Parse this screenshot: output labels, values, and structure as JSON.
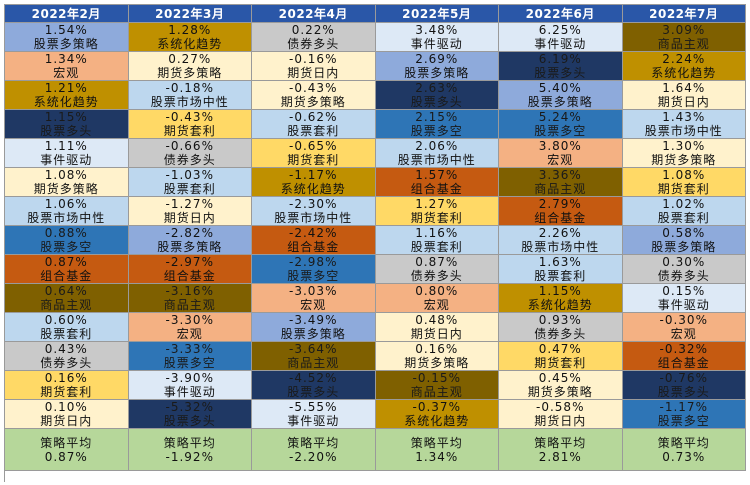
{
  "chart_data": {
    "type": "table",
    "title": "",
    "columns": [
      "2022年2月",
      "2022年3月",
      "2022年4月",
      "2022年5月",
      "2022年6月",
      "2022年7月"
    ],
    "unit": "%",
    "rows": [
      [
        {
          "v": "1.54%",
          "n": "股票多策略",
          "c": "#8eaadb"
        },
        {
          "v": "1.28%",
          "n": "系统化趋势",
          "c": "#bf9000"
        },
        {
          "v": "0.22%",
          "n": "债券多头",
          "c": "#c9c9c9"
        },
        {
          "v": "3.48%",
          "n": "事件驱动",
          "c": "#dde9f6"
        },
        {
          "v": "6.25%",
          "n": "事件驱动",
          "c": "#dde9f6"
        },
        {
          "v": "3.09%",
          "n": "商品主观",
          "c": "#7f6000"
        }
      ],
      [
        {
          "v": "1.34%",
          "n": "宏观",
          "c": "#f4b183"
        },
        {
          "v": "0.27%",
          "n": "期货多策略",
          "c": "#fff2cc"
        },
        {
          "v": "-0.16%",
          "n": "期货日内",
          "c": "#fff2cc"
        },
        {
          "v": "2.69%",
          "n": "股票多策略",
          "c": "#8eaadb"
        },
        {
          "v": "6.19%",
          "n": "股票多头",
          "c": "#1f3864"
        },
        {
          "v": "2.24%",
          "n": "系统化趋势",
          "c": "#bf9000"
        }
      ],
      [
        {
          "v": "1.21%",
          "n": "系统化趋势",
          "c": "#bf9000"
        },
        {
          "v": "-0.18%",
          "n": "股票市场中性",
          "c": "#bdd7ee"
        },
        {
          "v": "-0.43%",
          "n": "期货多策略",
          "c": "#fff2cc"
        },
        {
          "v": "2.63%",
          "n": "股票多头",
          "c": "#1f3864"
        },
        {
          "v": "5.40%",
          "n": "股票多策略",
          "c": "#8eaadb"
        },
        {
          "v": "1.64%",
          "n": "期货日内",
          "c": "#fff2cc"
        }
      ],
      [
        {
          "v": "1.15%",
          "n": "股票多头",
          "c": "#1f3864"
        },
        {
          "v": "-0.43%",
          "n": "期货套利",
          "c": "#ffd966"
        },
        {
          "v": "-0.62%",
          "n": "股票套利",
          "c": "#bdd7ee"
        },
        {
          "v": "2.15%",
          "n": "股票多空",
          "c": "#2e75b6"
        },
        {
          "v": "5.24%",
          "n": "股票多空",
          "c": "#2e75b6"
        },
        {
          "v": "1.43%",
          "n": "股票市场中性",
          "c": "#bdd7ee"
        }
      ],
      [
        {
          "v": "1.11%",
          "n": "事件驱动",
          "c": "#dde9f6"
        },
        {
          "v": "-0.66%",
          "n": "债券多头",
          "c": "#c9c9c9"
        },
        {
          "v": "-0.65%",
          "n": "期货套利",
          "c": "#ffd966"
        },
        {
          "v": "2.06%",
          "n": "股票市场中性",
          "c": "#bdd7ee"
        },
        {
          "v": "3.80%",
          "n": "宏观",
          "c": "#f4b183"
        },
        {
          "v": "1.30%",
          "n": "期货多策略",
          "c": "#fff2cc"
        }
      ],
      [
        {
          "v": "1.08%",
          "n": "期货多策略",
          "c": "#fff2cc"
        },
        {
          "v": "-1.03%",
          "n": "股票套利",
          "c": "#bdd7ee"
        },
        {
          "v": "-1.17%",
          "n": "系统化趋势",
          "c": "#bf9000"
        },
        {
          "v": "1.57%",
          "n": "组合基金",
          "c": "#c55a11"
        },
        {
          "v": "3.36%",
          "n": "商品主观",
          "c": "#7f6000"
        },
        {
          "v": "1.08%",
          "n": "期货套利",
          "c": "#ffd966"
        }
      ],
      [
        {
          "v": "1.06%",
          "n": "股票市场中性",
          "c": "#bdd7ee"
        },
        {
          "v": "-1.27%",
          "n": "期货日内",
          "c": "#fff2cc"
        },
        {
          "v": "-2.30%",
          "n": "股票市场中性",
          "c": "#bdd7ee"
        },
        {
          "v": "1.27%",
          "n": "期货套利",
          "c": "#ffd966"
        },
        {
          "v": "2.79%",
          "n": "组合基金",
          "c": "#c55a11"
        },
        {
          "v": "1.02%",
          "n": "股票套利",
          "c": "#bdd7ee"
        }
      ],
      [
        {
          "v": "0.88%",
          "n": "股票多空",
          "c": "#2e75b6"
        },
        {
          "v": "-2.82%",
          "n": "股票多策略",
          "c": "#8eaadb"
        },
        {
          "v": "-2.42%",
          "n": "组合基金",
          "c": "#c55a11"
        },
        {
          "v": "1.16%",
          "n": "股票套利",
          "c": "#bdd7ee"
        },
        {
          "v": "2.26%",
          "n": "股票市场中性",
          "c": "#bdd7ee"
        },
        {
          "v": "0.58%",
          "n": "股票多策略",
          "c": "#8eaadb"
        }
      ],
      [
        {
          "v": "0.87%",
          "n": "组合基金",
          "c": "#c55a11"
        },
        {
          "v": "-2.97%",
          "n": "组合基金",
          "c": "#c55a11"
        },
        {
          "v": "-2.98%",
          "n": "股票多空",
          "c": "#2e75b6"
        },
        {
          "v": "0.87%",
          "n": "债券多头",
          "c": "#c9c9c9"
        },
        {
          "v": "1.63%",
          "n": "股票套利",
          "c": "#bdd7ee"
        },
        {
          "v": "0.30%",
          "n": "债券多头",
          "c": "#c9c9c9"
        }
      ],
      [
        {
          "v": "0.64%",
          "n": "商品主观",
          "c": "#7f6000"
        },
        {
          "v": "-3.16%",
          "n": "商品主观",
          "c": "#7f6000"
        },
        {
          "v": "-3.03%",
          "n": "宏观",
          "c": "#f4b183"
        },
        {
          "v": "0.80%",
          "n": "宏观",
          "c": "#f4b183"
        },
        {
          "v": "1.15%",
          "n": "系统化趋势",
          "c": "#bf9000"
        },
        {
          "v": "0.15%",
          "n": "事件驱动",
          "c": "#dde9f6"
        }
      ],
      [
        {
          "v": "0.60%",
          "n": "股票套利",
          "c": "#bdd7ee"
        },
        {
          "v": "-3.30%",
          "n": "宏观",
          "c": "#f4b183"
        },
        {
          "v": "-3.49%",
          "n": "股票多策略",
          "c": "#8eaadb"
        },
        {
          "v": "0.48%",
          "n": "期货日内",
          "c": "#fff2cc"
        },
        {
          "v": "0.93%",
          "n": "债券多头",
          "c": "#c9c9c9"
        },
        {
          "v": "-0.30%",
          "n": "宏观",
          "c": "#f4b183"
        }
      ],
      [
        {
          "v": "0.43%",
          "n": "债券多头",
          "c": "#c9c9c9"
        },
        {
          "v": "-3.33%",
          "n": "股票多空",
          "c": "#2e75b6"
        },
        {
          "v": "-3.64%",
          "n": "商品主观",
          "c": "#7f6000"
        },
        {
          "v": "0.16%",
          "n": "期货多策略",
          "c": "#fff2cc"
        },
        {
          "v": "0.47%",
          "n": "期货套利",
          "c": "#ffd966"
        },
        {
          "v": "-0.32%",
          "n": "组合基金",
          "c": "#c55a11"
        }
      ],
      [
        {
          "v": "0.16%",
          "n": "期货套利",
          "c": "#ffd966"
        },
        {
          "v": "-3.90%",
          "n": "事件驱动",
          "c": "#dde9f6"
        },
        {
          "v": "-4.52%",
          "n": "股票多头",
          "c": "#1f3864"
        },
        {
          "v": "-0.15%",
          "n": "商品主观",
          "c": "#7f6000"
        },
        {
          "v": "0.45%",
          "n": "期货多策略",
          "c": "#fff2cc"
        },
        {
          "v": "-0.76%",
          "n": "股票多头",
          "c": "#1f3864"
        }
      ],
      [
        {
          "v": "0.10%",
          "n": "期货日内",
          "c": "#fff2cc"
        },
        {
          "v": "-5.32%",
          "n": "股票多头",
          "c": "#1f3864"
        },
        {
          "v": "-5.55%",
          "n": "事件驱动",
          "c": "#dde9f6"
        },
        {
          "v": "-0.37%",
          "n": "系统化趋势",
          "c": "#bf9000"
        },
        {
          "v": "-0.58%",
          "n": "期货日内",
          "c": "#fff2cc"
        },
        {
          "v": "-1.17%",
          "n": "股票多空",
          "c": "#2e75b6"
        }
      ]
    ],
    "footer": {
      "label": "策略平均",
      "values": [
        "0.87%",
        "-1.92%",
        "-2.20%",
        "1.34%",
        "2.81%",
        "0.73%"
      ]
    }
  }
}
